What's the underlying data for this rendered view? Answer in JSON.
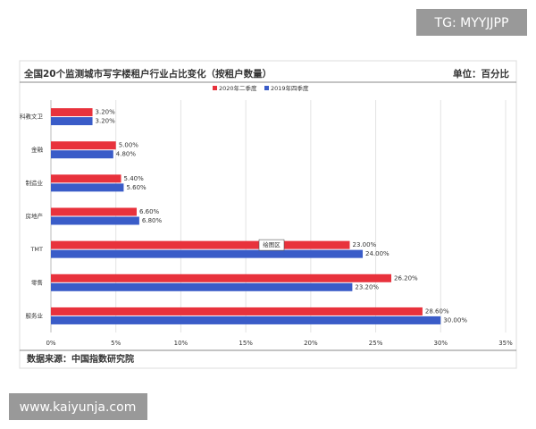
{
  "watermark": "TG: MYYJJPP",
  "website": "www.kaiyunja.com",
  "chart_data": {
    "type": "bar",
    "orientation": "horizontal",
    "title": "全国20个监测城市写字楼租户行业占比变化（按租户数量）",
    "unit_label": "单位：百分比",
    "source": "数据来源：中国指数研究院",
    "annotation": "绘图区",
    "categories": [
      "科教文卫",
      "金融",
      "制造业",
      "房地产",
      "TMT",
      "零售",
      "服务业"
    ],
    "series": [
      {
        "name": "2020年二季度",
        "color": "#e8323c",
        "values": [
          3.2,
          5.0,
          5.4,
          6.6,
          23.0,
          26.2,
          28.6
        ],
        "value_labels": [
          "3.20%",
          "5.00%",
          "5.40%",
          "6.60%",
          "23.00%",
          "26.20%",
          "28.60%"
        ]
      },
      {
        "name": "2019年四季度",
        "color": "#3a5cc8",
        "values": [
          3.2,
          4.8,
          5.6,
          6.8,
          24.0,
          23.2,
          30.0
        ],
        "value_labels": [
          "3.20%",
          "4.80%",
          "5.60%",
          "6.80%",
          "24.00%",
          "23.20%",
          "30.00%"
        ]
      }
    ],
    "xlim": [
      0,
      35
    ],
    "xticks": [
      {
        "value": 0,
        "label": "0%"
      },
      {
        "value": 5,
        "label": "5%"
      },
      {
        "value": 10,
        "label": "10%"
      },
      {
        "value": 15,
        "label": "15%"
      },
      {
        "value": 20,
        "label": "20%"
      },
      {
        "value": 25,
        "label": "25%"
      },
      {
        "value": 30,
        "label": "30%"
      },
      {
        "value": 35,
        "label": "35%"
      }
    ],
    "grid": true
  }
}
